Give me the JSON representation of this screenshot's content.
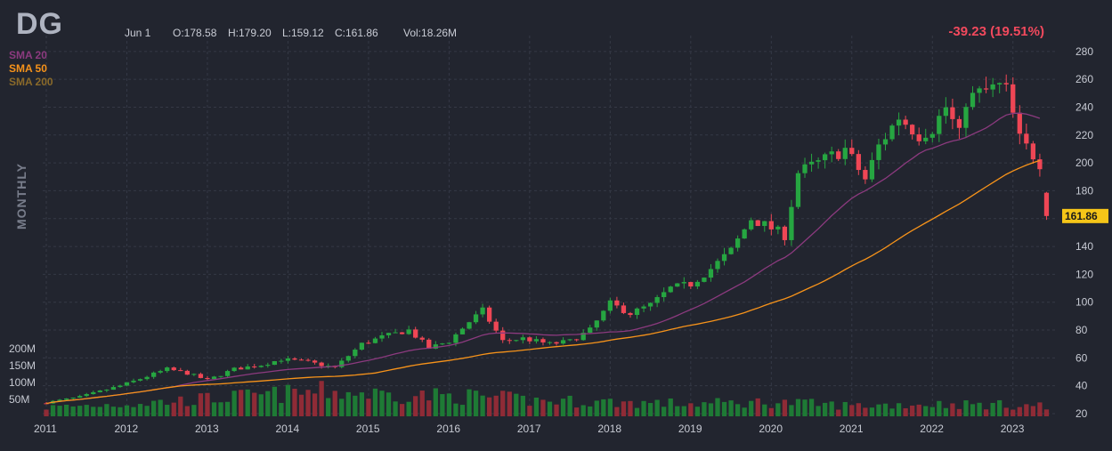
{
  "header": {
    "ticker": "DG",
    "date": "Jun 1",
    "open": "O:178.58",
    "high": "H:179.20",
    "low": "L:159.12",
    "close": "C:161.86",
    "volume": "Vol:18.26M",
    "change": "-39.23 (19.51%)",
    "timeframe": "MONTHLY"
  },
  "legend": [
    {
      "label": "SMA 20",
      "color": "#8c3a7f"
    },
    {
      "label": "SMA 50",
      "color": "#f7931a"
    },
    {
      "label": "SMA 200",
      "color": "#8a6a2a"
    }
  ],
  "colors": {
    "up": "#26a641",
    "down": "#ef4655",
    "up_volume": "#1e7a35",
    "down_volume": "#8f2b36",
    "background": "#22252f",
    "grid": "#353946",
    "last_price_tag": "#f5c518"
  },
  "chart_data": {
    "type": "candlestick",
    "title": "DG",
    "timeframe": "monthly",
    "y_axis": {
      "ticks": [
        20,
        40,
        60,
        80,
        100,
        120,
        140,
        160,
        180,
        200,
        220,
        240,
        260,
        280
      ],
      "range": [
        20,
        285
      ]
    },
    "volume_axis": {
      "ticks": [
        "50M",
        "100M",
        "150M",
        "200M"
      ],
      "values": [
        50,
        100,
        150,
        200
      ],
      "range": [
        0,
        250
      ]
    },
    "x_axis": {
      "ticks": [
        "2011",
        "2012",
        "2013",
        "2014",
        "2015",
        "2016",
        "2017",
        "2018",
        "2019",
        "2020",
        "2021",
        "2022",
        "2023"
      ]
    },
    "last_price": "161.86",
    "anchors": [
      [
        "2011-01",
        28
      ],
      [
        "2011-06",
        32
      ],
      [
        "2011-12",
        40
      ],
      [
        "2012-03",
        45
      ],
      [
        "2012-07",
        52
      ],
      [
        "2012-10",
        49
      ],
      [
        "2013-01",
        44
      ],
      [
        "2013-05",
        52
      ],
      [
        "2013-09",
        55
      ],
      [
        "2013-12",
        59
      ],
      [
        "2014-04",
        57
      ],
      [
        "2014-08",
        53
      ],
      [
        "2014-12",
        70
      ],
      [
        "2015-03",
        75
      ],
      [
        "2015-07",
        80
      ],
      [
        "2015-10",
        67
      ],
      [
        "2016-01",
        72
      ],
      [
        "2016-04",
        86
      ],
      [
        "2016-06",
        94
      ],
      [
        "2016-09",
        72
      ],
      [
        "2016-12",
        74
      ],
      [
        "2017-04",
        70
      ],
      [
        "2017-07",
        72
      ],
      [
        "2017-10",
        80
      ],
      [
        "2018-01",
        99
      ],
      [
        "2018-04",
        92
      ],
      [
        "2018-07",
        98
      ],
      [
        "2018-10",
        110
      ],
      [
        "2019-01",
        113
      ],
      [
        "2019-04",
        124
      ],
      [
        "2019-07",
        137
      ],
      [
        "2019-10",
        160
      ],
      [
        "2020-01",
        153
      ],
      [
        "2020-03",
        148
      ],
      [
        "2020-05",
        193
      ],
      [
        "2020-08",
        200
      ],
      [
        "2020-12",
        210
      ],
      [
        "2021-03",
        188
      ],
      [
        "2021-05",
        212
      ],
      [
        "2021-08",
        233
      ],
      [
        "2021-11",
        220
      ],
      [
        "2022-01",
        225
      ],
      [
        "2022-03",
        240
      ],
      [
        "2022-05",
        220
      ],
      [
        "2022-06",
        245
      ],
      [
        "2022-08",
        250
      ],
      [
        "2022-11",
        255
      ],
      [
        "2022-12",
        252
      ],
      [
        "2023-02",
        217
      ],
      [
        "2023-05",
        200
      ],
      [
        "2023-06",
        161.86
      ]
    ],
    "volume_anchors": [
      [
        "2011-01",
        25
      ],
      [
        "2012-06",
        40
      ],
      [
        "2013-06",
        55
      ],
      [
        "2014-06",
        70
      ],
      [
        "2015-06",
        60
      ],
      [
        "2016-06",
        55
      ],
      [
        "2017-01",
        45
      ],
      [
        "2018-01",
        40
      ],
      [
        "2019-01",
        35
      ],
      [
        "2020-01",
        40
      ],
      [
        "2021-01",
        30
      ],
      [
        "2022-01",
        35
      ],
      [
        "2023-06",
        30
      ]
    ],
    "series": [
      {
        "name": "SMA 20"
      },
      {
        "name": "SMA 50"
      },
      {
        "name": "SMA 200"
      }
    ],
    "grid": true
  }
}
